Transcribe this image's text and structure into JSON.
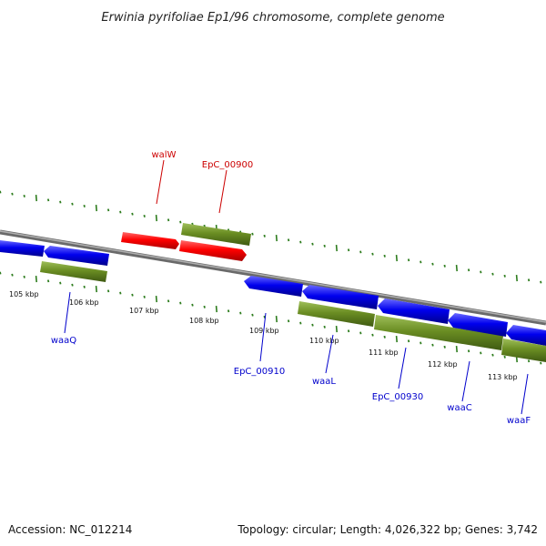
{
  "title": "Erwinia pyrifoliae Ep1/96 chromosome, complete genome",
  "footer": {
    "accession": "Accession: NC_012214",
    "summary": "Topology: circular; Length: 4,026,322 bp; Genes: 3,742"
  },
  "colors": {
    "backbone": "#888888",
    "tick": "#2e7d1e",
    "forward_label": "#cc0000",
    "reverse_label": "#0000cc",
    "red_feature": "#ff0000",
    "blue_feature": "#0000ee",
    "olive_feature": "#6b8e23"
  },
  "scale_labels": [
    "105 kbp",
    "106 kbp",
    "107 kbp",
    "108 kbp",
    "109 kbp",
    "110 kbp",
    "111 kbp",
    "112 kbp",
    "113 kbp"
  ],
  "gene_labels": [
    {
      "text": "walW",
      "strand": "forward"
    },
    {
      "text": "EpC_00900",
      "strand": "forward"
    },
    {
      "text": "waaQ",
      "strand": "reverse"
    },
    {
      "text": "EpC_00910",
      "strand": "reverse"
    },
    {
      "text": "waaL",
      "strand": "reverse"
    },
    {
      "text": "EpC_00930",
      "strand": "reverse"
    },
    {
      "text": "waaC",
      "strand": "reverse"
    },
    {
      "text": "waaF",
      "strand": "reverse"
    }
  ]
}
